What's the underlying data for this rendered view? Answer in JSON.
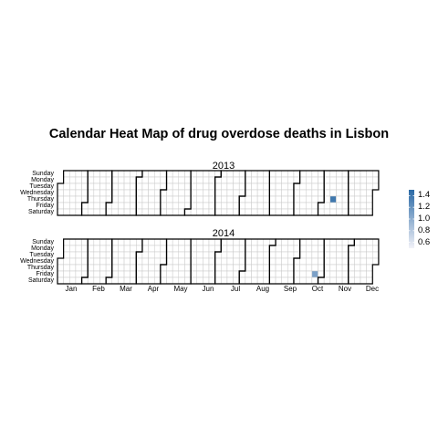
{
  "chart_data": {
    "type": "heatmap",
    "title": "Calendar Heat Map of drug overdose deaths in Lisbon",
    "weekdays": [
      "Sunday",
      "Monday",
      "Tuesday",
      "Wednesday",
      "Thursday",
      "Friday",
      "Saturday"
    ],
    "months": [
      "Jan",
      "Feb",
      "Mar",
      "Apr",
      "May",
      "Jun",
      "Jul",
      "Aug",
      "Sep",
      "Oct",
      "Nov",
      "Dec"
    ],
    "panels": [
      {
        "year": "2013",
        "label": "2013",
        "cells": [
          {
            "date": "2013-11-14",
            "value": 1.4
          }
        ]
      },
      {
        "year": "2014",
        "label": "2014",
        "cells": [
          {
            "date": "2014-10-24",
            "value": 1.1
          }
        ]
      }
    ],
    "legend": {
      "ticks": [
        "1.4",
        "1.2",
        "1.0",
        "0.8",
        "0.6"
      ],
      "tick_values": [
        1.4,
        1.2,
        1.0,
        0.8,
        0.6
      ],
      "range": [
        0.5,
        1.5
      ],
      "colors": {
        "low": "#f2f2f8",
        "high": "#2b6aa6"
      },
      "placement": "right"
    },
    "colors": {
      "empty_cell": "#ffffff",
      "grid_line": "#c8c8c8",
      "month_border": "#000000"
    }
  }
}
